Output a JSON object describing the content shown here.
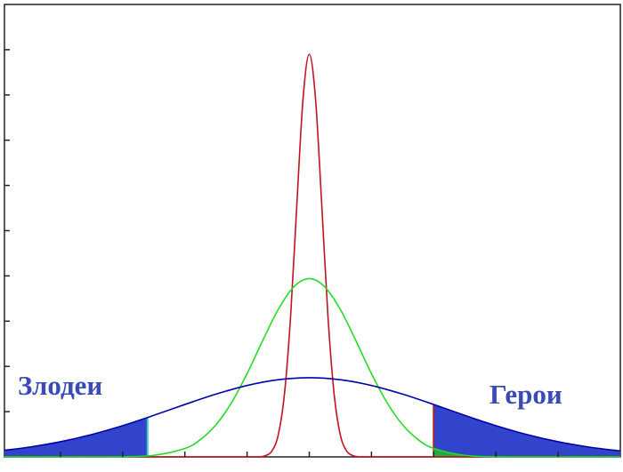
{
  "chart_data": {
    "type": "line",
    "xlim": [
      -4.9,
      5
    ],
    "ylim": [
      0,
      10
    ],
    "xticks": [
      -4,
      -3,
      -2,
      -1,
      0,
      1,
      2,
      3,
      4
    ],
    "yticks": [
      1,
      2,
      3,
      4,
      5,
      6,
      7,
      8,
      9
    ],
    "annotations": [
      {
        "text": "Злодеи"
      },
      {
        "text": "Герои"
      }
    ],
    "series": [
      {
        "color": "#c0141e",
        "x": [
          -4.9,
          -1.5,
          -1,
          -0.8,
          -0.7,
          -0.6,
          -0.5,
          -0.4,
          -0.3,
          -0.2,
          -0.1,
          0,
          0.1,
          0.2,
          0.3,
          0.4,
          0.5,
          0.6,
          0.7,
          0.8,
          1,
          1.5,
          5
        ],
        "values": [
          0,
          0,
          0,
          0,
          0.03,
          0.13,
          0.48,
          1.38,
          3.11,
          5.58,
          7.92,
          8.9,
          7.92,
          5.58,
          3.11,
          1.38,
          0.48,
          0.13,
          0.03,
          0,
          0,
          0,
          0
        ]
      },
      {
        "color": "#22dd22",
        "x": [
          -4.9,
          -3.5,
          -3,
          -2.5,
          -2,
          -1.75,
          -1.5,
          -1.25,
          -1,
          -0.75,
          -0.5,
          -0.25,
          0,
          0.25,
          0.5,
          0.75,
          1,
          1.25,
          1.5,
          1.75,
          2,
          2.5,
          3,
          3.5,
          5
        ],
        "values": [
          0,
          0,
          0.004,
          0.034,
          0.187,
          0.382,
          0.709,
          1.198,
          1.839,
          2.566,
          3.256,
          3.757,
          3.94,
          3.757,
          3.256,
          2.566,
          1.839,
          1.198,
          0.709,
          0.382,
          0.187,
          0.034,
          0.004,
          0,
          0
        ]
      },
      {
        "color": "#0000aa",
        "x": [
          -4.9,
          -4.5,
          -4,
          -3.5,
          -3,
          -2.5,
          -2,
          -1.5,
          -1,
          -0.5,
          0,
          0.5,
          1,
          1.5,
          2,
          2.5,
          3,
          3.5,
          4,
          4.5,
          5
        ],
        "values": [
          0.146,
          0.216,
          0.335,
          0.494,
          0.691,
          0.918,
          1.158,
          1.387,
          1.578,
          1.705,
          1.75,
          1.705,
          1.578,
          1.387,
          1.158,
          0.918,
          0.691,
          0.494,
          0.335,
          0.216,
          0.132
        ]
      }
    ],
    "shading": [
      {
        "series": 2,
        "range": [
          -4.9,
          -2.6
        ],
        "color": "#3344cc",
        "edge_color": "#33cccc"
      },
      {
        "series": 2,
        "range": [
          2,
          5
        ],
        "color": "#3344cc",
        "edge_color": "#aa2222"
      },
      {
        "series": 1,
        "range": [
          2,
          5
        ],
        "color": "#22aa44"
      }
    ]
  }
}
